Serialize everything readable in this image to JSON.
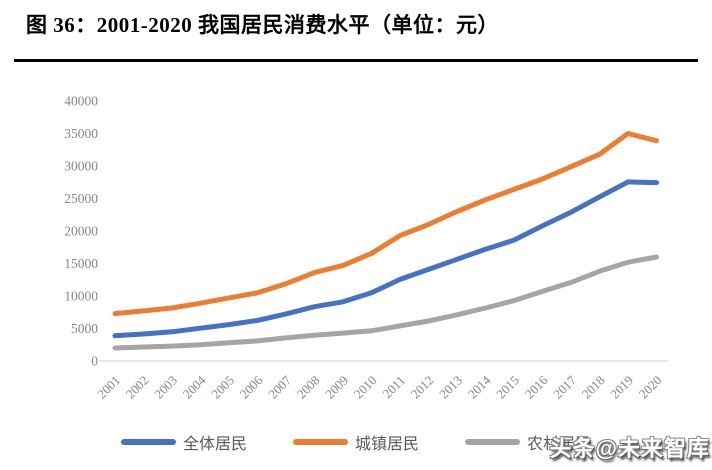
{
  "header": {
    "title": "图 36：2001-2020 我国居民消费水平（单位：元）"
  },
  "chart_data": {
    "type": "line",
    "title": "2001-2020 我国居民消费水平（单位：元）",
    "xlabel": "",
    "ylabel": "",
    "categories": [
      "2001",
      "2002",
      "2003",
      "2004",
      "2005",
      "2006",
      "2007",
      "2008",
      "2009",
      "2010",
      "2011",
      "2012",
      "2013",
      "2014",
      "2015",
      "2016",
      "2017",
      "2018",
      "2019",
      "2020"
    ],
    "series": [
      {
        "name": "全体居民",
        "color": "#4472C4",
        "values": [
          3900,
          4150,
          4500,
          5050,
          5600,
          6250,
          7250,
          8350,
          9100,
          10500,
          12550,
          14100,
          15650,
          17200,
          18600,
          20800,
          22900,
          25250,
          27550,
          27450
        ]
      },
      {
        "name": "城镇居民",
        "color": "#ED7D31",
        "values": [
          7300,
          7700,
          8150,
          8900,
          9700,
          10500,
          11900,
          13600,
          14700,
          16550,
          19300,
          21000,
          23000,
          24800,
          26400,
          28000,
          29900,
          31800,
          35000,
          33900
        ]
      },
      {
        "name": "农村居民",
        "color": "#A5A5A5",
        "values": [
          2000,
          2150,
          2300,
          2500,
          2800,
          3100,
          3550,
          3950,
          4300,
          4650,
          5400,
          6150,
          7100,
          8150,
          9300,
          10700,
          12100,
          13800,
          15200,
          16000
        ]
      }
    ],
    "ylim": [
      0,
      40000
    ],
    "ytick_step": 5000,
    "yticks": [
      0,
      5000,
      10000,
      15000,
      20000,
      25000,
      30000,
      35000,
      40000
    ],
    "grid": false,
    "legend_position": "bottom"
  },
  "watermark": {
    "text": "头条@未来智库"
  },
  "colors": {
    "axis_label": "#7e8globe"
  }
}
